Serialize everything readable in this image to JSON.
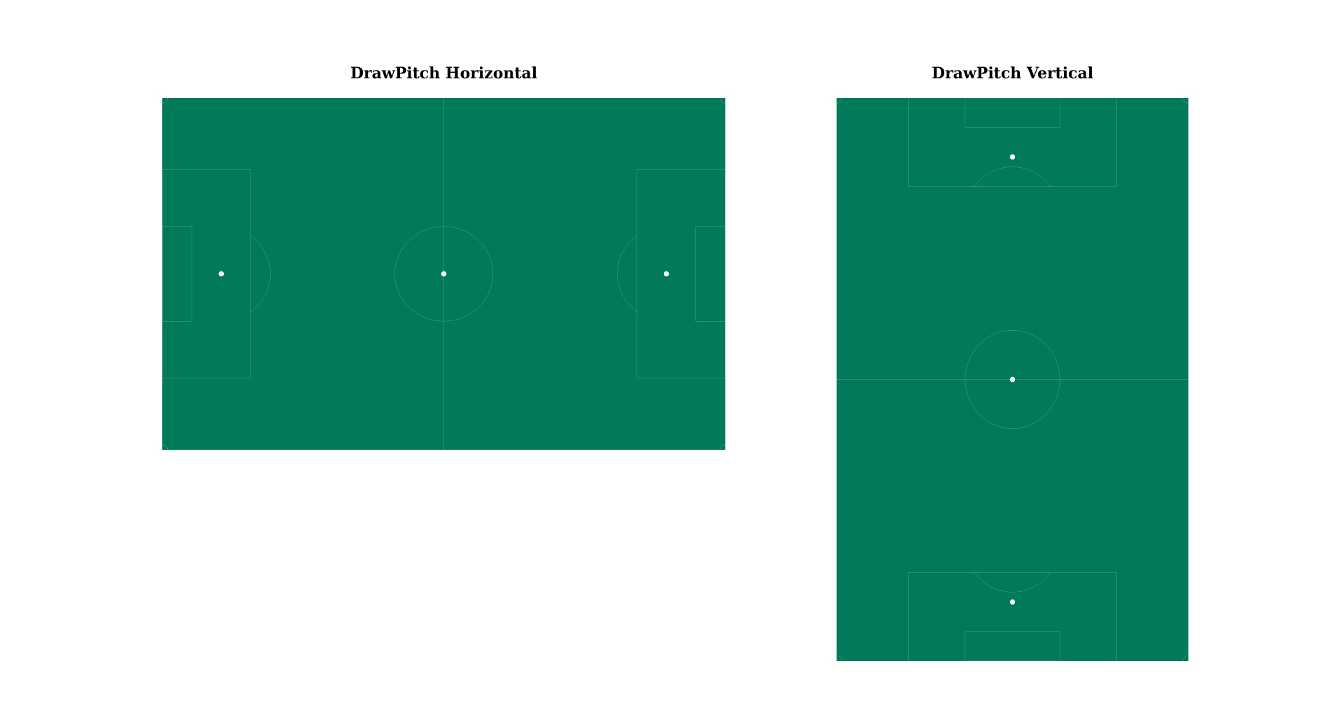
{
  "titles": {
    "horizontal": "DrawPitch Horizontal",
    "vertical": "DrawPitch Vertical"
  },
  "colors": {
    "pitch": "#007a5a",
    "lines": "#e8f0ec",
    "spots": "#ffffff",
    "background": "#ffffff",
    "title_text": "#000000"
  }
}
